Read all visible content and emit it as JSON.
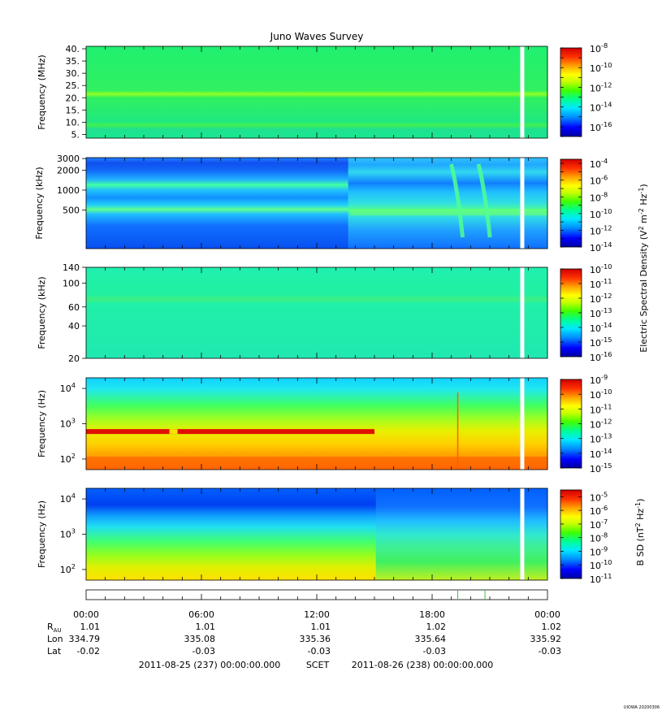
{
  "title": "Juno Waves Survey",
  "footer_stamp": "UIOWA 20200306",
  "colors": {
    "scale": [
      "#0000a0",
      "#0000ff",
      "#0080ff",
      "#00e0ff",
      "#00ff80",
      "#40ff00",
      "#c0ff00",
      "#ffff00",
      "#ffa000",
      "#ff3000",
      "#d00000"
    ]
  },
  "chart_data": [
    {
      "type": "heatmap",
      "ylabel": "Frequency (MHz)",
      "yscale": "linear",
      "ylim": [
        3.5,
        41
      ],
      "yticks": [
        "40.",
        "35.",
        "30.",
        "25.",
        "20.",
        "15.",
        "10.",
        "5."
      ],
      "ytick_values": [
        40,
        35,
        30,
        25,
        20,
        15,
        10,
        5
      ],
      "bands": [
        {
          "freq": 21,
          "level": "bright-green"
        },
        {
          "freq": 8.5,
          "level": "green"
        }
      ],
      "background_level": "green",
      "data_gap_time": "22:35",
      "colorbar": {
        "label": "",
        "min_exp": -17,
        "max_exp": -8,
        "tick_exps": [
          -8,
          -10,
          -12,
          -14,
          -16
        ]
      }
    },
    {
      "type": "heatmap",
      "ylabel": "Frequency (kHz)",
      "yscale": "log",
      "ylim": [
        130,
        3100
      ],
      "yticks": [
        "3000",
        "2000",
        "1000",
        "500"
      ],
      "ytick_values": [
        3000,
        2000,
        1000,
        500
      ],
      "bands": [
        {
          "freq": 2200,
          "level": "blue",
          "until": "13:45"
        },
        {
          "freq": 1100,
          "level": "green",
          "until": "13:45"
        },
        {
          "freq": 450,
          "level": "cyan-green"
        }
      ],
      "events": [
        "19:20",
        "20:45"
      ],
      "data_gap_time": "22:35",
      "colorbar": {
        "label": "Electric Spectral Density (V² m⁻² Hz⁻¹)",
        "label_parts": [
          "Electric Spectral Density (V",
          "2",
          " m",
          "-2",
          " Hz",
          "-1",
          ")"
        ],
        "min_exp": -14,
        "max_exp": -3.5,
        "tick_exps": [
          -4,
          -6,
          -8,
          -10,
          -12,
          -14
        ]
      }
    },
    {
      "type": "heatmap",
      "ylabel": "Frequency (kHz)",
      "yscale": "log",
      "ylim": [
        20,
        140
      ],
      "yticks": [
        "140",
        "100",
        "60",
        "40",
        "20"
      ],
      "ytick_values": [
        140,
        100,
        60,
        40,
        20
      ],
      "background_level": "cyan-green",
      "data_gap_time": "22:35",
      "colorbar": {
        "label": "",
        "min_exp": -16,
        "max_exp": -10,
        "tick_exps": [
          -10,
          -11,
          -12,
          -13,
          -14,
          -15,
          -16
        ]
      }
    },
    {
      "type": "heatmap",
      "ylabel": "Frequency (Hz)",
      "yscale": "log",
      "ylim": [
        50,
        20000
      ],
      "yticks": [
        "10",
        "10",
        "10"
      ],
      "ytick_exps": [
        "4",
        "3",
        "2"
      ],
      "ytick_values": [
        10000,
        1000,
        100
      ],
      "bands": [
        {
          "freq": 600,
          "level": "red",
          "from": "00:00",
          "until": "15:00"
        }
      ],
      "data_gap_time": "22:35",
      "colorbar": {
        "label": "",
        "min_exp": -15,
        "max_exp": -9,
        "tick_exps": [
          -9,
          -10,
          -11,
          -12,
          -13,
          -14,
          -15
        ]
      }
    },
    {
      "type": "heatmap",
      "ylabel": "Frequency (Hz)",
      "yscale": "log",
      "ylim": [
        50,
        20000
      ],
      "yticks": [
        "10",
        "10",
        "10"
      ],
      "ytick_exps": [
        "4",
        "3",
        "2"
      ],
      "ytick_values": [
        10000,
        1000,
        100
      ],
      "data_gap_time": "22:35",
      "colorbar": {
        "label": "B SD (nT² Hz⁻¹)",
        "label_parts": [
          "B SD (nT",
          "2",
          " Hz",
          "-1",
          ")"
        ],
        "min_exp": -11,
        "max_exp": -4.5,
        "tick_exps": [
          -5,
          -6,
          -7,
          -8,
          -9,
          -10,
          -11
        ]
      }
    }
  ],
  "time_axis": {
    "ticks": [
      "00:00",
      "06:00",
      "12:00",
      "18:00",
      "00:00"
    ],
    "span_hours": 24,
    "rows": [
      {
        "label": "R",
        "label_sub": "AU",
        "values": [
          "1.01",
          "1.01",
          "1.01",
          "1.02",
          "1.02"
        ]
      },
      {
        "label": "Lon",
        "label_sub": "",
        "values": [
          "334.79",
          "335.08",
          "335.36",
          "335.64",
          "335.92"
        ]
      },
      {
        "label": "Lat",
        "label_sub": "",
        "values": [
          "-0.02",
          "-0.03",
          "-0.03",
          "-0.03",
          "-0.03"
        ]
      }
    ],
    "event_marks": [
      "19:20",
      "20:45"
    ],
    "footer": {
      "start": "2011-08-25 (237) 00:00:00.000",
      "mid": "SCET",
      "end": "2011-08-26 (238) 00:00:00.000"
    }
  }
}
